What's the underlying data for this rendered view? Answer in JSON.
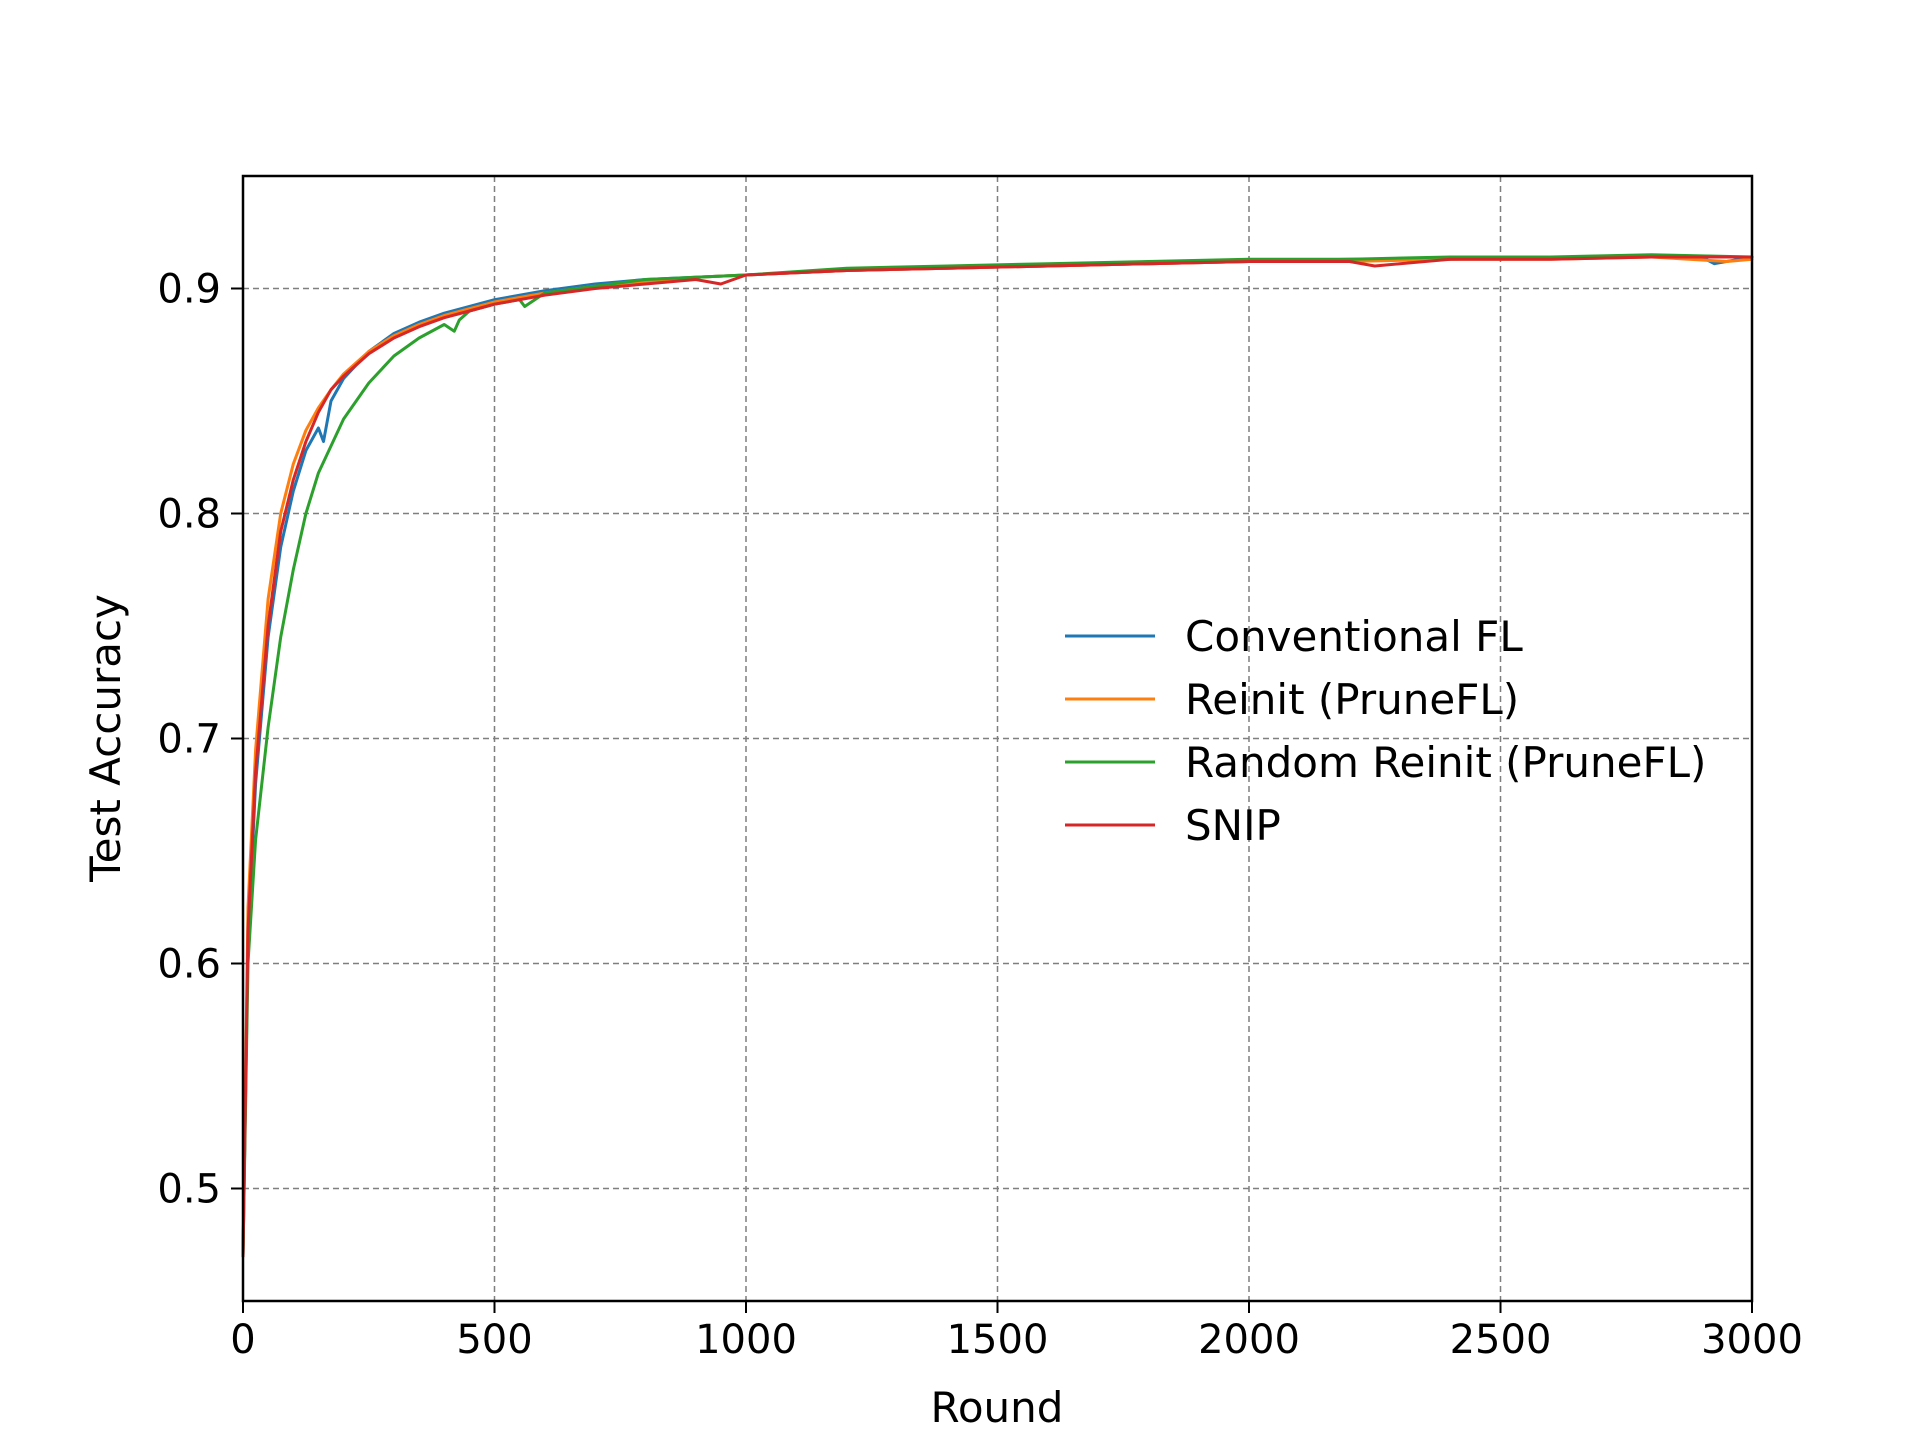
{
  "chart_data": {
    "type": "line",
    "title": "",
    "xlabel": "Round",
    "ylabel": "Test Accuracy",
    "xlim": [
      0,
      3000
    ],
    "ylim": [
      0.45,
      0.95
    ],
    "xticks": [
      0,
      500,
      1000,
      1500,
      2000,
      2500,
      3000
    ],
    "xtick_labels": [
      "0",
      "500",
      "1000",
      "1500",
      "2000",
      "2500",
      "3000"
    ],
    "yticks": [
      0.5,
      0.6,
      0.7,
      0.8,
      0.9
    ],
    "ytick_labels": [
      "0.5",
      "0.6",
      "0.7",
      "0.8",
      "0.9"
    ],
    "grid": true,
    "legend_position": "center-right",
    "series": [
      {
        "name": "Conventional FL",
        "color": "#1f77b4",
        "x": [
          0,
          10,
          25,
          50,
          75,
          100,
          125,
          150,
          160,
          175,
          200,
          250,
          300,
          350,
          400,
          450,
          500,
          600,
          700,
          800,
          900,
          1000,
          1200,
          1400,
          1600,
          1800,
          2000,
          2200,
          2400,
          2600,
          2800,
          2900,
          2925,
          3000
        ],
        "y": [
          0.47,
          0.61,
          0.68,
          0.745,
          0.785,
          0.81,
          0.828,
          0.838,
          0.832,
          0.85,
          0.86,
          0.872,
          0.88,
          0.885,
          0.889,
          0.892,
          0.895,
          0.899,
          0.902,
          0.904,
          0.905,
          0.906,
          0.908,
          0.909,
          0.91,
          0.911,
          0.912,
          0.913,
          0.913,
          0.914,
          0.914,
          0.914,
          0.911,
          0.914
        ]
      },
      {
        "name": "Reinit (PruneFL)",
        "color": "#ff7f0e",
        "x": [
          0,
          10,
          25,
          50,
          75,
          100,
          125,
          150,
          175,
          200,
          250,
          300,
          350,
          400,
          450,
          500,
          600,
          700,
          800,
          900,
          1000,
          1200,
          1400,
          1600,
          1800,
          2000,
          2200,
          2400,
          2600,
          2800,
          2950,
          3000
        ],
        "y": [
          0.47,
          0.625,
          0.695,
          0.762,
          0.8,
          0.822,
          0.837,
          0.847,
          0.855,
          0.862,
          0.872,
          0.879,
          0.884,
          0.888,
          0.891,
          0.894,
          0.898,
          0.901,
          0.903,
          0.905,
          0.906,
          0.908,
          0.909,
          0.91,
          0.911,
          0.912,
          0.912,
          0.913,
          0.913,
          0.914,
          0.912,
          0.913
        ]
      },
      {
        "name": "Random Reinit (PruneFL)",
        "color": "#2ca02c",
        "x": [
          0,
          10,
          25,
          50,
          75,
          100,
          125,
          150,
          175,
          200,
          250,
          300,
          350,
          400,
          420,
          430,
          450,
          500,
          550,
          560,
          600,
          700,
          800,
          900,
          1000,
          1200,
          1400,
          1600,
          1800,
          2000,
          2200,
          2400,
          2600,
          2800,
          3000
        ],
        "y": [
          0.47,
          0.6,
          0.655,
          0.705,
          0.745,
          0.775,
          0.8,
          0.818,
          0.83,
          0.842,
          0.858,
          0.87,
          0.878,
          0.884,
          0.881,
          0.886,
          0.89,
          0.893,
          0.895,
          0.892,
          0.898,
          0.901,
          0.904,
          0.905,
          0.906,
          0.909,
          0.91,
          0.911,
          0.912,
          0.913,
          0.913,
          0.914,
          0.914,
          0.915,
          0.914
        ]
      },
      {
        "name": "SNIP",
        "color": "#d62728",
        "x": [
          0,
          10,
          25,
          50,
          75,
          100,
          125,
          150,
          175,
          200,
          250,
          300,
          350,
          400,
          450,
          500,
          600,
          700,
          800,
          900,
          950,
          1000,
          1200,
          1400,
          1600,
          1800,
          2000,
          2200,
          2250,
          2400,
          2600,
          2800,
          3000
        ],
        "y": [
          0.47,
          0.615,
          0.685,
          0.75,
          0.792,
          0.815,
          0.832,
          0.845,
          0.855,
          0.861,
          0.871,
          0.878,
          0.883,
          0.887,
          0.89,
          0.893,
          0.897,
          0.9,
          0.902,
          0.904,
          0.902,
          0.906,
          0.908,
          0.909,
          0.91,
          0.911,
          0.912,
          0.912,
          0.91,
          0.913,
          0.913,
          0.914,
          0.914
        ]
      }
    ]
  }
}
